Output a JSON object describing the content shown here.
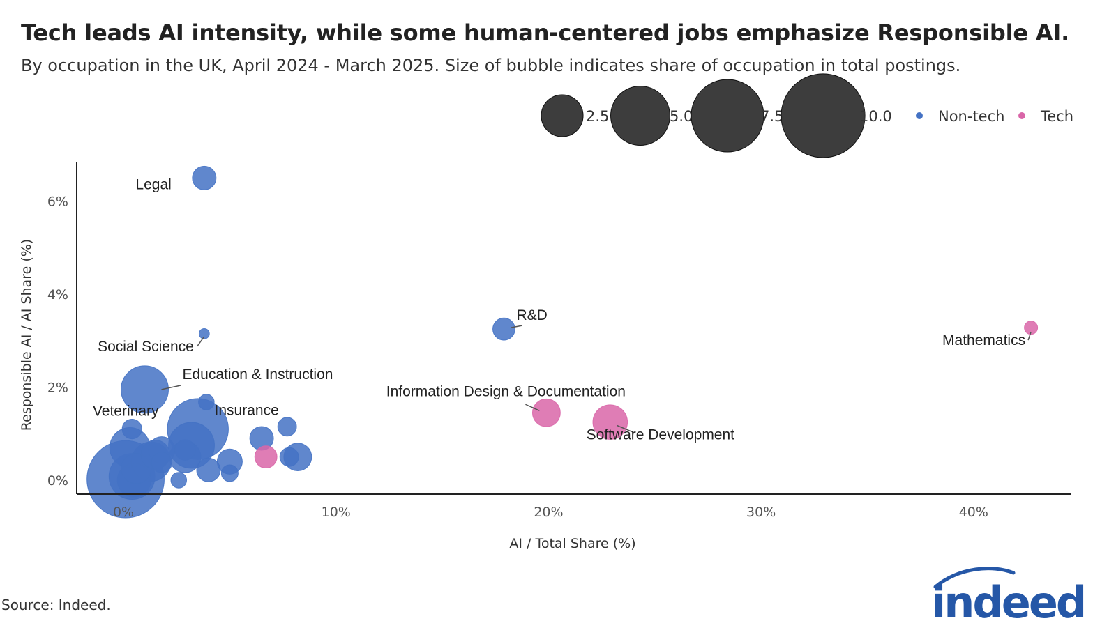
{
  "title": "Tech leads AI intensity, while some human-centered jobs emphasize Responsible AI.",
  "subtitle": "By occupation in the UK, April 2024 - March 2025. Size of bubble indicates share of occupation in total postings.",
  "source": "Source: Indeed.",
  "logo_text": "indeed",
  "colors": {
    "non_tech": "#4472C4",
    "tech": "#D966A8",
    "size_legend": "#333333",
    "axis": "#222222"
  },
  "chart_data": {
    "type": "scatter",
    "xlabel": "AI / Total Share (%)",
    "ylabel": "Responsible AI / AI Share (%)",
    "xlim": [
      -2.2,
      44.6
    ],
    "ylim": [
      -0.3,
      6.85
    ],
    "x_ticks": [
      0,
      10,
      20,
      30,
      40
    ],
    "x_tick_labels": [
      "0%",
      "10%",
      "20%",
      "30%",
      "40%"
    ],
    "y_ticks": [
      0,
      2,
      4,
      6
    ],
    "y_tick_labels": [
      "0%",
      "2%",
      "4%",
      "6%"
    ],
    "size_legend": {
      "values": [
        2.5,
        5.0,
        7.5,
        10.0
      ],
      "labels": [
        "2.5",
        "5.0",
        "7.5",
        "10.0"
      ]
    },
    "color_legend": [
      {
        "key": "non_tech",
        "label": "Non-tech"
      },
      {
        "key": "tech",
        "label": "Tech"
      }
    ],
    "points": [
      {
        "x": 3.8,
        "y": 6.5,
        "size": 0.8,
        "group": "non_tech",
        "label": "Legal"
      },
      {
        "x": 3.8,
        "y": 3.15,
        "size": 0.15,
        "group": "non_tech",
        "label": "Social Science"
      },
      {
        "x": 17.9,
        "y": 3.25,
        "size": 0.7,
        "group": "non_tech",
        "label": "R&D"
      },
      {
        "x": 42.7,
        "y": 3.28,
        "size": 0.25,
        "group": "tech",
        "label": "Mathematics"
      },
      {
        "x": 1.0,
        "y": 1.95,
        "size": 3.2,
        "group": "non_tech",
        "label": "Education & Instruction"
      },
      {
        "x": 19.9,
        "y": 1.45,
        "size": 1.1,
        "group": "tech",
        "label": "Information Design & Documentation"
      },
      {
        "x": 22.9,
        "y": 1.25,
        "size": 1.7,
        "group": "tech",
        "label": "Software Development"
      },
      {
        "x": 0.4,
        "y": 1.1,
        "size": 0.55,
        "group": "non_tech",
        "label": "Veterinary"
      },
      {
        "x": 3.5,
        "y": 1.1,
        "size": 5.3,
        "group": "non_tech",
        "label": "Insurance"
      },
      {
        "x": 3.9,
        "y": 1.68,
        "size": 0.35,
        "group": "non_tech",
        "label": ""
      },
      {
        "x": 7.7,
        "y": 1.15,
        "size": 0.5,
        "group": "non_tech",
        "label": ""
      },
      {
        "x": 6.5,
        "y": 0.9,
        "size": 0.8,
        "group": "non_tech",
        "label": ""
      },
      {
        "x": 6.7,
        "y": 0.5,
        "size": 0.7,
        "group": "tech",
        "label": ""
      },
      {
        "x": 8.2,
        "y": 0.5,
        "size": 1.1,
        "group": "non_tech",
        "label": ""
      },
      {
        "x": 7.8,
        "y": 0.5,
        "size": 0.5,
        "group": "non_tech",
        "label": ""
      },
      {
        "x": 5.0,
        "y": 0.4,
        "size": 0.9,
        "group": "non_tech",
        "label": ""
      },
      {
        "x": 4.0,
        "y": 0.22,
        "size": 0.8,
        "group": "non_tech",
        "label": ""
      },
      {
        "x": 5.0,
        "y": 0.15,
        "size": 0.4,
        "group": "non_tech",
        "label": ""
      },
      {
        "x": 2.6,
        "y": 0.0,
        "size": 0.35,
        "group": "non_tech",
        "label": ""
      },
      {
        "x": 3.2,
        "y": 0.75,
        "size": 3.0,
        "group": "non_tech",
        "label": ""
      },
      {
        "x": 2.9,
        "y": 0.5,
        "size": 1.4,
        "group": "non_tech",
        "label": ""
      },
      {
        "x": 2.9,
        "y": 0.65,
        "size": 0.6,
        "group": "non_tech",
        "label": ""
      },
      {
        "x": 0.3,
        "y": 0.7,
        "size": 2.3,
        "group": "non_tech",
        "label": ""
      },
      {
        "x": 1.8,
        "y": 0.65,
        "size": 1.0,
        "group": "non_tech",
        "label": ""
      },
      {
        "x": 1.5,
        "y": 0.55,
        "size": 1.2,
        "group": "non_tech",
        "label": ""
      },
      {
        "x": 1.3,
        "y": 0.4,
        "size": 2.2,
        "group": "non_tech",
        "label": ""
      },
      {
        "x": 1.8,
        "y": 0.38,
        "size": 0.6,
        "group": "non_tech",
        "label": ""
      },
      {
        "x": 0.6,
        "y": 0.25,
        "size": 1.3,
        "group": "non_tech",
        "label": ""
      },
      {
        "x": 0.4,
        "y": 0.08,
        "size": 3.0,
        "group": "non_tech",
        "label": ""
      },
      {
        "x": 0.1,
        "y": 0.02,
        "size": 8.5,
        "group": "non_tech",
        "label": ""
      },
      {
        "x": 0.5,
        "y": 0.0,
        "size": 1.6,
        "group": "non_tech",
        "label": ""
      }
    ]
  }
}
